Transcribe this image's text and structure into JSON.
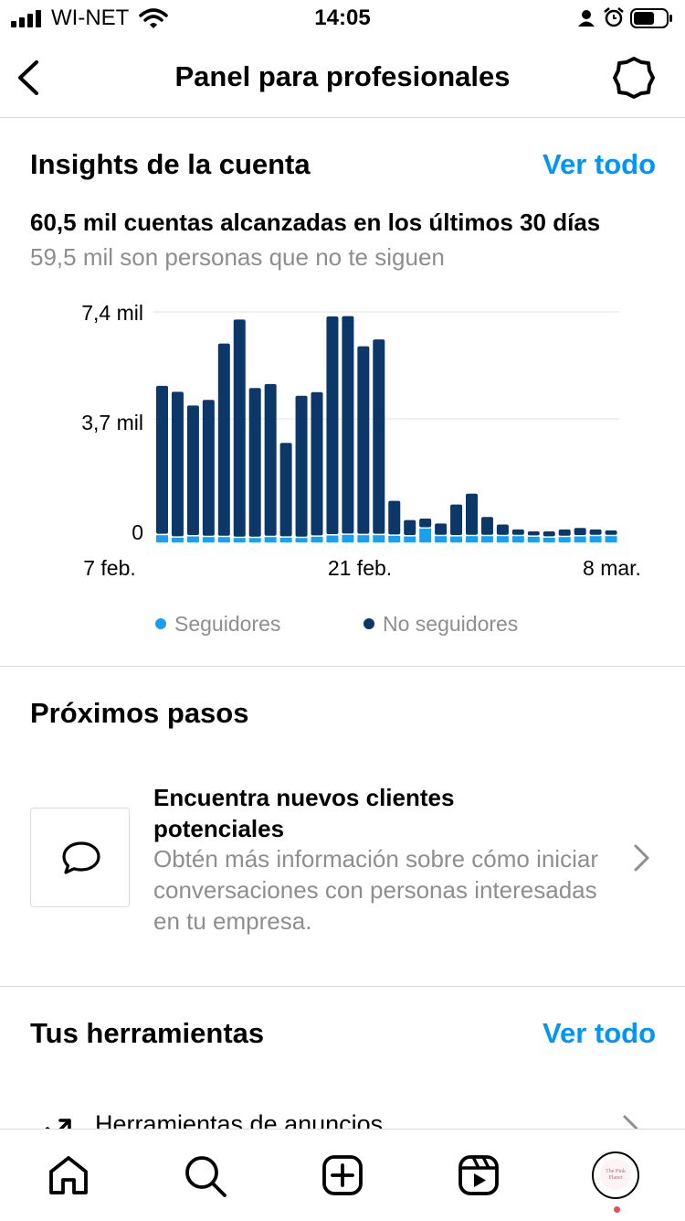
{
  "status_bar": {
    "carrier": "WI-NET",
    "time": "14:05"
  },
  "header": {
    "title": "Panel para profesionales"
  },
  "insights": {
    "title": "Insights de la cuenta",
    "see_all": "Ver todo",
    "summary": "60,5 mil cuentas alcanzadas en los últimos 30 días",
    "subsummary": "59,5 mil son personas que no te siguen",
    "legend": {
      "followers": "Seguidores",
      "non_followers": "No seguidores"
    }
  },
  "chart_data": {
    "type": "bar",
    "stacked": true,
    "y_tick_labels": [
      "7,4 mil",
      "3,7 mil",
      "0"
    ],
    "y_ticks": [
      7400,
      3700,
      0
    ],
    "ylim": [
      0,
      7400
    ],
    "x_tick_labels": [
      "7 feb.",
      "21 feb.",
      "8 mar."
    ],
    "grid": true,
    "legend_position": "bottom",
    "colors": {
      "followers": "#1aa0f0",
      "non_followers": "#0c3769"
    },
    "series": [
      {
        "name": "Seguidores",
        "values": [
          230,
          150,
          190,
          170,
          170,
          140,
          140,
          170,
          150,
          140,
          180,
          220,
          240,
          230,
          230,
          210,
          190,
          440,
          200,
          190,
          200,
          200,
          200,
          200,
          180,
          150,
          170,
          190,
          200,
          200
        ]
      },
      {
        "name": "No seguidores",
        "values": [
          4750,
          4640,
          4160,
          4360,
          6170,
          6970,
          4770,
          4870,
          3000,
          4520,
          4600,
          6990,
          6980,
          6020,
          6240,
          1080,
          480,
          280,
          360,
          980,
          1320,
          570,
          330,
          170,
          130,
          160,
          200,
          230,
          170,
          140
        ]
      }
    ]
  },
  "next_steps": {
    "title": "Próximos pasos",
    "card": {
      "title": "Encuentra nuevos clientes potenciales",
      "description": "Obtén más información sobre cómo iniciar conversaciones con personas interesadas en tu empresa."
    }
  },
  "tools": {
    "title": "Tus herramientas",
    "see_all": "Ver todo",
    "first_item": "Herramientas de anuncios"
  },
  "tabbar": {
    "icons": [
      "home-icon",
      "search-icon",
      "new-post-icon",
      "reels-icon",
      "profile-avatar"
    ],
    "avatar_text": "The Pink Planet"
  }
}
